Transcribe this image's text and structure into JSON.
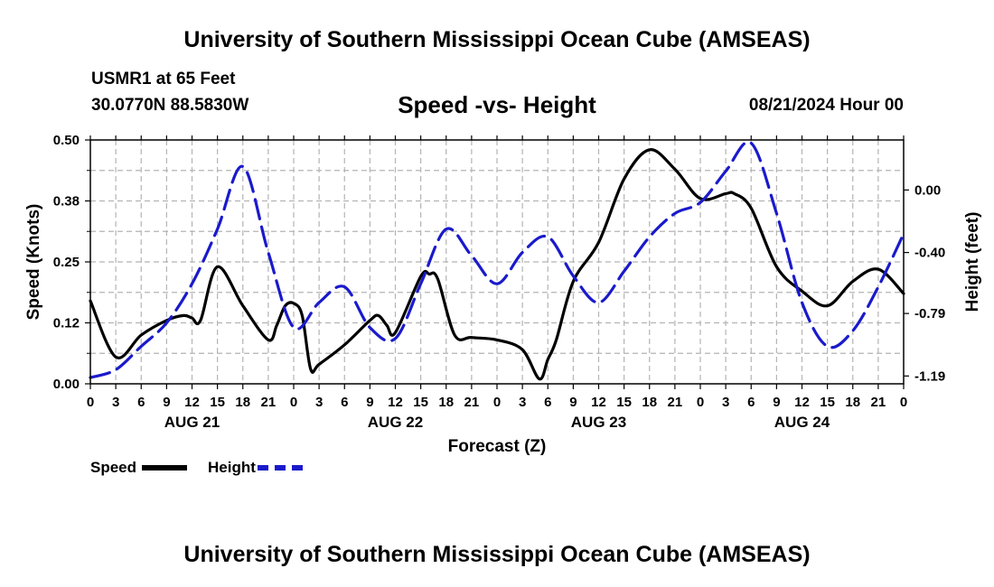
{
  "header": {
    "title": "University of Southern Mississippi Ocean Cube (AMSEAS)",
    "station": "USMR1 at 65 Feet",
    "coords": "30.0770N  88.5830W",
    "subtitle": "Speed -vs- Height",
    "date": "08/21/2024 Hour 00"
  },
  "footer": {
    "title": "University of Southern Mississippi Ocean Cube (AMSEAS)"
  },
  "legend": {
    "speed_label": "Speed",
    "height_label": "Height"
  },
  "colors": {
    "speed": "#000000",
    "height": "#1a1acc",
    "grid": "#b4b4b4"
  },
  "chart_data": {
    "type": "line",
    "title": "Speed -vs- Height",
    "xlabel": "Forecast (Z)",
    "ylabel": "Speed (Knots)",
    "y2label": "Height (feet)",
    "xlim": [
      0,
      96
    ],
    "ylim": [
      0,
      0.5
    ],
    "y2lim": [
      -1.24,
      0.32
    ],
    "x_tick_labels": [
      "0",
      "3",
      "6",
      "9",
      "12",
      "15",
      "18",
      "21",
      "0",
      "3",
      "6",
      "9",
      "12",
      "15",
      "18",
      "21",
      "0",
      "3",
      "6",
      "9",
      "12",
      "15",
      "18",
      "21",
      "0",
      "3",
      "6",
      "9",
      "12",
      "15",
      "18",
      "21",
      "0"
    ],
    "day_labels": [
      {
        "x": 12,
        "label": "AUG 21"
      },
      {
        "x": 36,
        "label": "AUG 22"
      },
      {
        "x": 60,
        "label": "AUG 23"
      },
      {
        "x": 84,
        "label": "AUG 24"
      }
    ],
    "y_ticks": [
      "0.00",
      "0.12",
      "0.25",
      "0.38",
      "0.50"
    ],
    "y_tick_values": [
      0,
      0.125,
      0.25,
      0.375,
      0.5
    ],
    "y2_ticks": [
      "0.00",
      "-0.40",
      "-0.79",
      "-1.19"
    ],
    "y2_tick_values": [
      0,
      -0.4,
      -0.79,
      -1.19
    ],
    "grid": true,
    "legend_position": "bottom-left",
    "series": [
      {
        "name": "Speed",
        "axis": "left",
        "style": "solid",
        "x": [
          0,
          3,
          6,
          9,
          11,
          12,
          13,
          15,
          18,
          21,
          22,
          23,
          24,
          25,
          26,
          27,
          30,
          33,
          34,
          35,
          36,
          39,
          40,
          41,
          43,
          45,
          48,
          51,
          53,
          54,
          55,
          57,
          60,
          63,
          66,
          69,
          72,
          75,
          76,
          78,
          81,
          84,
          87,
          90,
          93,
          96
        ],
        "y": [
          0.17,
          0.055,
          0.1,
          0.13,
          0.14,
          0.135,
          0.13,
          0.24,
          0.16,
          0.09,
          0.12,
          0.16,
          0.165,
          0.14,
          0.03,
          0.04,
          0.08,
          0.13,
          0.14,
          0.12,
          0.105,
          0.22,
          0.225,
          0.215,
          0.1,
          0.095,
          0.09,
          0.07,
          0.01,
          0.05,
          0.09,
          0.21,
          0.29,
          0.42,
          0.48,
          0.44,
          0.38,
          0.39,
          0.39,
          0.36,
          0.24,
          0.19,
          0.16,
          0.21,
          0.235,
          0.185
        ]
      },
      {
        "name": "Height",
        "axis": "right",
        "style": "dashed",
        "x": [
          0,
          3,
          6,
          9,
          12,
          15,
          18,
          21,
          24,
          27,
          30,
          33,
          36,
          39,
          42,
          45,
          48,
          51,
          54,
          57,
          60,
          63,
          66,
          69,
          72,
          75,
          78,
          81,
          84,
          87,
          90,
          93,
          96
        ],
        "y": [
          -1.2,
          -1.15,
          -1.0,
          -0.85,
          -0.6,
          -0.25,
          0.15,
          -0.4,
          -0.88,
          -0.72,
          -0.62,
          -0.88,
          -0.95,
          -0.6,
          -0.25,
          -0.42,
          -0.6,
          -0.4,
          -0.3,
          -0.55,
          -0.72,
          -0.52,
          -0.3,
          -0.15,
          -0.08,
          0.12,
          0.3,
          -0.15,
          -0.72,
          -1.0,
          -0.9,
          -0.62,
          -0.28
        ]
      }
    ]
  }
}
